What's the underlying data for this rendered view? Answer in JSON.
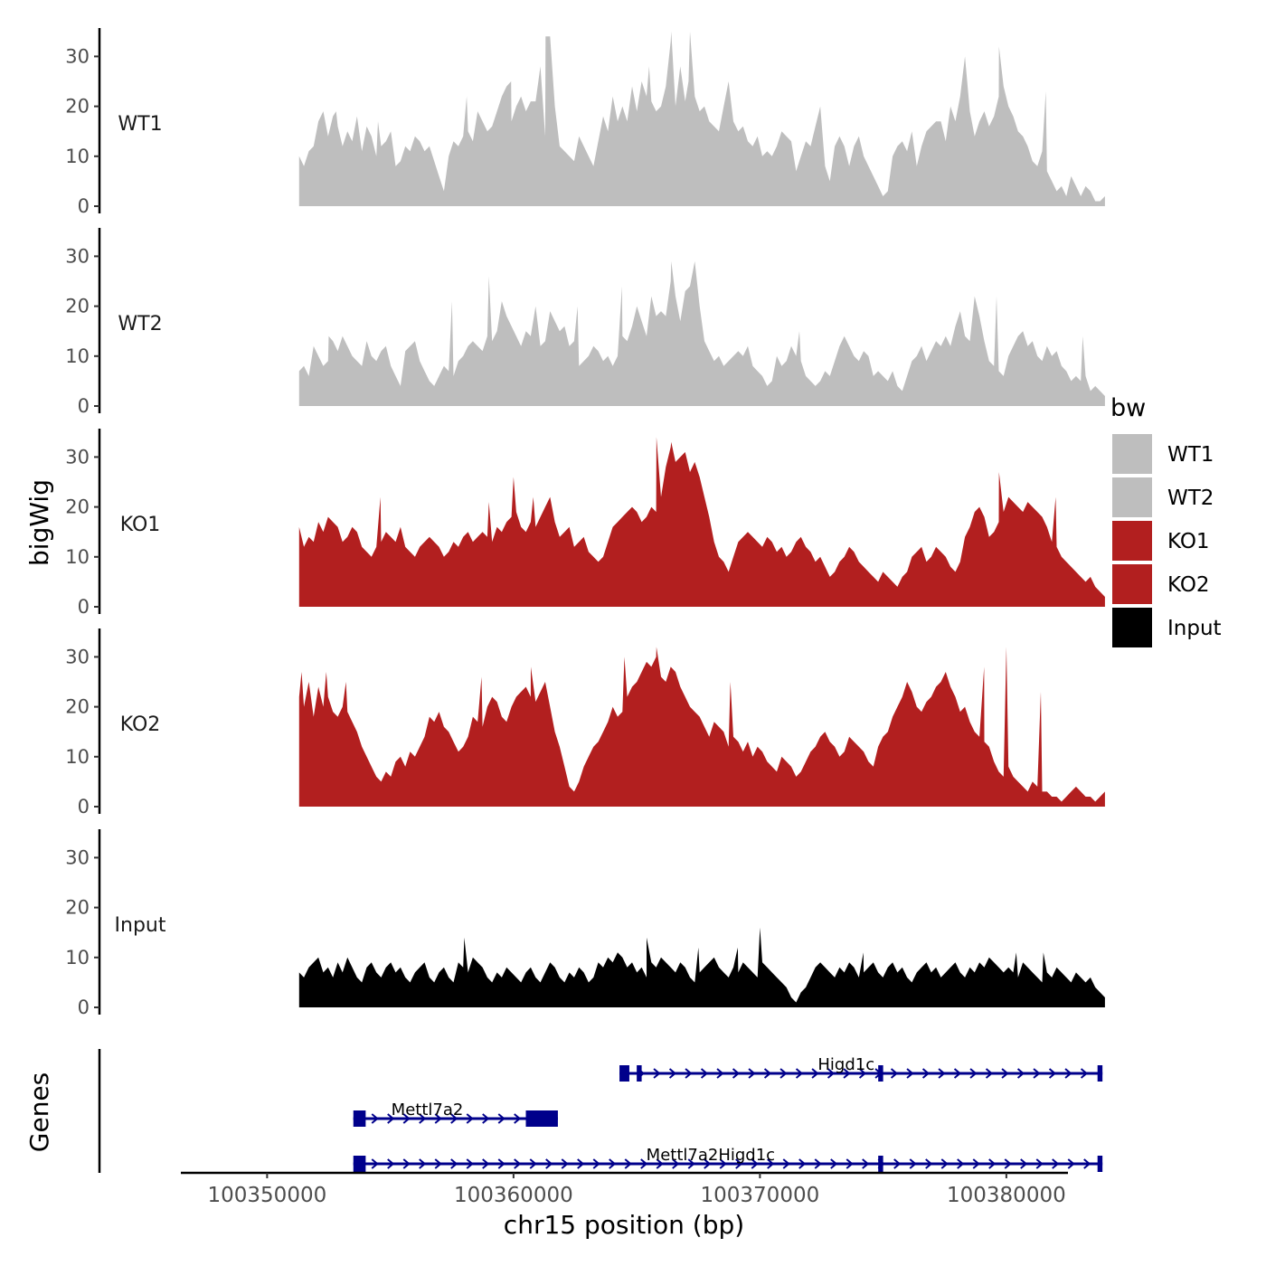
{
  "chart_data": {
    "type": "area",
    "ylabel": "bigWig",
    "xlabel": "chr15 position (bp)",
    "genes_label": "Genes",
    "ylim": [
      0,
      35
    ],
    "y_ticks": [
      0,
      10,
      20,
      30
    ],
    "xlim": [
      100346500,
      100382500
    ],
    "x_ticks": [
      100350000,
      100360000,
      100370000,
      100380000
    ],
    "x_tick_labels": [
      "100350000",
      "100360000",
      "100370000",
      "100380000"
    ],
    "signal_start": 100351300,
    "signal_end": 100384000,
    "legend": {
      "title": "bw",
      "entries": [
        {
          "label": "WT1",
          "color": "#bebebe"
        },
        {
          "label": "WT2",
          "color": "#bebebe"
        },
        {
          "label": "KO1",
          "color": "#b21f1f"
        },
        {
          "label": "KO2",
          "color": "#b21f1f"
        },
        {
          "label": "Input",
          "color": "#000000"
        }
      ]
    },
    "tracks": [
      {
        "name": "WT1",
        "color": "#bebebe",
        "values": [
          10,
          8,
          11,
          12,
          17,
          19,
          14,
          18,
          16,
          12,
          15,
          13,
          18,
          11,
          16,
          14,
          10,
          12,
          13,
          15,
          8,
          9,
          12,
          11,
          14,
          13,
          11,
          12,
          9,
          6,
          3,
          10,
          13,
          12,
          14,
          15,
          13,
          19,
          17,
          15,
          16,
          19,
          22,
          24,
          17,
          20,
          22,
          19,
          21,
          21,
          28,
          14,
          34,
          20,
          12,
          11,
          10,
          9,
          14,
          12,
          10,
          8,
          13,
          18,
          15,
          22,
          17,
          20,
          17,
          24,
          19,
          25,
          22,
          21,
          19,
          20,
          24,
          33,
          20,
          28,
          21,
          35,
          22,
          19,
          20,
          17,
          16,
          15,
          20,
          25,
          17,
          15,
          16,
          13,
          12,
          14,
          10,
          11,
          10,
          12,
          15,
          14,
          13,
          7,
          10,
          13,
          12,
          16,
          20,
          8,
          5,
          12,
          14,
          12,
          8,
          12,
          14,
          10,
          8,
          6,
          4,
          2,
          3,
          10,
          12,
          13,
          11,
          15,
          8,
          12,
          15,
          16,
          17,
          17,
          13,
          20,
          17,
          22,
          30,
          19,
          14,
          17,
          19,
          16,
          18,
          22,
          24,
          20,
          18,
          15,
          14,
          12,
          9,
          8,
          11,
          7,
          5,
          3,
          4,
          2,
          6,
          4,
          2,
          4,
          3,
          1,
          1,
          2
        ],
        "spikes": [
          [
            100352800,
            19
          ],
          [
            100354500,
            17
          ],
          [
            100358100,
            22
          ],
          [
            100359900,
            25
          ],
          [
            100361300,
            34
          ],
          [
            100365500,
            28
          ],
          [
            100366400,
            35
          ],
          [
            100367100,
            25
          ],
          [
            100372400,
            19
          ],
          [
            100379700,
            32
          ],
          [
            100381600,
            23
          ]
        ]
      },
      {
        "name": "WT2",
        "color": "#bebebe",
        "values": [
          7,
          8,
          6,
          12,
          10,
          8,
          9,
          13,
          11,
          14,
          12,
          10,
          9,
          8,
          13,
          10,
          9,
          11,
          12,
          8,
          6,
          4,
          11,
          12,
          13,
          9,
          7,
          5,
          4,
          6,
          8,
          7,
          6,
          9,
          10,
          12,
          13,
          12,
          11,
          14,
          13,
          15,
          21,
          18,
          16,
          14,
          12,
          15,
          14,
          20,
          12,
          13,
          19,
          17,
          15,
          16,
          12,
          13,
          8,
          9,
          10,
          12,
          11,
          9,
          10,
          8,
          10,
          14,
          13,
          16,
          20,
          17,
          14,
          22,
          18,
          19,
          18,
          25,
          22,
          17,
          23,
          24,
          29,
          20,
          13,
          11,
          9,
          10,
          8,
          9,
          10,
          11,
          10,
          12,
          8,
          7,
          6,
          4,
          5,
          10,
          8,
          9,
          12,
          10,
          9,
          6,
          5,
          4,
          5,
          7,
          6,
          9,
          12,
          14,
          12,
          10,
          9,
          11,
          10,
          6,
          7,
          6,
          5,
          7,
          4,
          3,
          6,
          9,
          10,
          12,
          9,
          11,
          13,
          12,
          14,
          12,
          16,
          19,
          14,
          13,
          22,
          18,
          13,
          9,
          8,
          7,
          6,
          10,
          12,
          14,
          15,
          12,
          13,
          10,
          9,
          12,
          10,
          11,
          8,
          7,
          5,
          6,
          5,
          6,
          3,
          4,
          3,
          2
        ],
        "spikes": [
          [
            100352500,
            14
          ],
          [
            100357500,
            21
          ],
          [
            100359000,
            26
          ],
          [
            100362600,
            20
          ],
          [
            100364400,
            24
          ],
          [
            100366400,
            29
          ],
          [
            100371600,
            15
          ],
          [
            100379600,
            22
          ],
          [
            100383100,
            14
          ]
        ]
      },
      {
        "name": "KO1",
        "color": "#b21f1f",
        "values": [
          16,
          12,
          14,
          13,
          17,
          15,
          18,
          17,
          16,
          13,
          14,
          16,
          15,
          12,
          11,
          10,
          12,
          13,
          15,
          14,
          13,
          16,
          12,
          11,
          10,
          12,
          13,
          14,
          13,
          12,
          10,
          11,
          13,
          12,
          14,
          15,
          13,
          14,
          15,
          14,
          13,
          16,
          15,
          17,
          18,
          19,
          16,
          15,
          17,
          16,
          18,
          20,
          22,
          17,
          14,
          15,
          16,
          12,
          13,
          14,
          11,
          10,
          9,
          10,
          13,
          16,
          17,
          18,
          19,
          20,
          19,
          17,
          18,
          20,
          19,
          22,
          28,
          32,
          29,
          30,
          31,
          27,
          29,
          26,
          22,
          18,
          13,
          10,
          9,
          7,
          10,
          13,
          14,
          15,
          14,
          13,
          12,
          14,
          13,
          11,
          12,
          10,
          11,
          13,
          14,
          12,
          11,
          9,
          10,
          8,
          6,
          7,
          9,
          10,
          12,
          11,
          9,
          8,
          7,
          6,
          5,
          7,
          6,
          5,
          4,
          6,
          7,
          10,
          11,
          12,
          9,
          10,
          12,
          11,
          10,
          8,
          7,
          9,
          14,
          16,
          19,
          20,
          18,
          14,
          15,
          17,
          19,
          22,
          21,
          20,
          19,
          21,
          20,
          19,
          18,
          16,
          13,
          12,
          10,
          9,
          8,
          7,
          6,
          5,
          6,
          4,
          3,
          2
        ],
        "spikes": [
          [
            100354600,
            22
          ],
          [
            100359000,
            21
          ],
          [
            100360000,
            26
          ],
          [
            100360800,
            22
          ],
          [
            100365800,
            34
          ],
          [
            100366400,
            33
          ],
          [
            100379700,
            27
          ],
          [
            100382000,
            22
          ]
        ]
      },
      {
        "name": "KO2",
        "color": "#b21f1f",
        "values": [
          22,
          20,
          25,
          18,
          24,
          20,
          22,
          19,
          18,
          20,
          19,
          17,
          15,
          12,
          10,
          8,
          6,
          5,
          7,
          6,
          9,
          10,
          8,
          11,
          10,
          12,
          14,
          18,
          17,
          19,
          16,
          15,
          13,
          11,
          12,
          14,
          18,
          17,
          16,
          20,
          22,
          21,
          18,
          17,
          20,
          22,
          23,
          24,
          22,
          21,
          23,
          25,
          20,
          15,
          12,
          8,
          4,
          3,
          5,
          8,
          10,
          12,
          13,
          15,
          17,
          20,
          18,
          19,
          22,
          24,
          25,
          27,
          29,
          28,
          30,
          26,
          25,
          28,
          27,
          24,
          22,
          20,
          19,
          18,
          16,
          14,
          17,
          16,
          15,
          12,
          14,
          13,
          11,
          13,
          10,
          12,
          11,
          9,
          8,
          7,
          10,
          9,
          8,
          6,
          7,
          9,
          11,
          12,
          14,
          15,
          13,
          12,
          10,
          11,
          14,
          13,
          12,
          11,
          9,
          8,
          12,
          14,
          15,
          18,
          20,
          22,
          25,
          23,
          20,
          19,
          21,
          22,
          24,
          25,
          27,
          24,
          22,
          19,
          20,
          17,
          15,
          14,
          13,
          12,
          9,
          7,
          6,
          8,
          6,
          5,
          4,
          3,
          5,
          4,
          3,
          3,
          2,
          2,
          1,
          2,
          3,
          4,
          3,
          2,
          2,
          1,
          2,
          3
        ],
        "spikes": [
          [
            100351400,
            27
          ],
          [
            100352400,
            27
          ],
          [
            100353200,
            25
          ],
          [
            100358700,
            26
          ],
          [
            100360700,
            28
          ],
          [
            100364500,
            30
          ],
          [
            100365800,
            32
          ],
          [
            100368800,
            25
          ],
          [
            100379100,
            28
          ],
          [
            100380000,
            32
          ],
          [
            100381400,
            23
          ]
        ]
      },
      {
        "name": "Input",
        "color": "#000000",
        "values": [
          7,
          6,
          8,
          9,
          10,
          7,
          8,
          6,
          9,
          7,
          10,
          8,
          6,
          5,
          8,
          9,
          7,
          6,
          8,
          9,
          7,
          8,
          6,
          5,
          7,
          8,
          9,
          6,
          5,
          7,
          8,
          6,
          5,
          9,
          8,
          7,
          10,
          9,
          8,
          6,
          5,
          7,
          6,
          8,
          7,
          6,
          5,
          7,
          8,
          6,
          5,
          7,
          9,
          8,
          6,
          5,
          7,
          6,
          8,
          7,
          5,
          6,
          9,
          8,
          10,
          9,
          11,
          10,
          8,
          9,
          7,
          8,
          6,
          9,
          8,
          10,
          9,
          8,
          7,
          9,
          8,
          6,
          5,
          7,
          8,
          9,
          10,
          8,
          7,
          6,
          8,
          7,
          9,
          8,
          7,
          6,
          9,
          8,
          7,
          6,
          5,
          4,
          2,
          1,
          3,
          4,
          6,
          8,
          9,
          8,
          7,
          6,
          8,
          7,
          9,
          8,
          6,
          7,
          8,
          9,
          7,
          6,
          8,
          9,
          7,
          8,
          6,
          5,
          7,
          8,
          9,
          7,
          8,
          6,
          7,
          8,
          9,
          7,
          6,
          8,
          7,
          9,
          8,
          10,
          9,
          8,
          7,
          8,
          7,
          6,
          9,
          8,
          7,
          6,
          5,
          7,
          6,
          8,
          7,
          6,
          5,
          7,
          6,
          5,
          6,
          4,
          3,
          2
        ],
        "spikes": [
          [
            100358000,
            14
          ],
          [
            100365400,
            14
          ],
          [
            100367500,
            12
          ],
          [
            100369100,
            12
          ],
          [
            100370000,
            16
          ],
          [
            100374200,
            11
          ],
          [
            100380400,
            11
          ],
          [
            100381500,
            11
          ]
        ]
      }
    ],
    "genes": [
      {
        "name": "Higd1c",
        "start": 100364300,
        "end": 100383900,
        "row": 0,
        "label_x": 100373500,
        "exons": [
          [
            100364300,
            100364700
          ],
          [
            100365000,
            100365200
          ],
          [
            100374800,
            100375000
          ],
          [
            100383700,
            100383900
          ]
        ]
      },
      {
        "name": "Mettl7a2",
        "start": 100353500,
        "end": 100361800,
        "row": 1,
        "label_x": 100356500,
        "exons": [
          [
            100353500,
            100354000
          ],
          [
            100360500,
            100361800
          ]
        ]
      },
      {
        "name": "Mettl7a2Higd1c",
        "start": 100353500,
        "end": 100383900,
        "row": 2,
        "label_x": 100368000,
        "exons": [
          [
            100353500,
            100354000
          ],
          [
            100374800,
            100375000
          ],
          [
            100383700,
            100383900
          ]
        ]
      }
    ]
  }
}
